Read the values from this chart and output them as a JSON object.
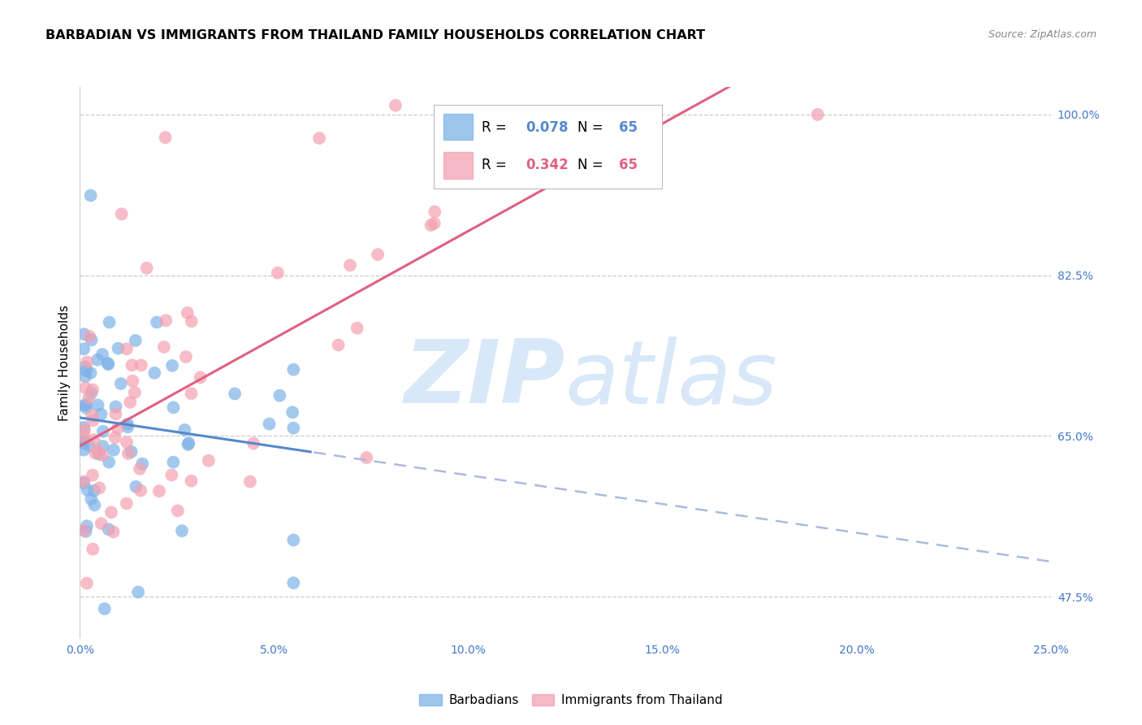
{
  "title": "BARBADIAN VS IMMIGRANTS FROM THAILAND FAMILY HOUSEHOLDS CORRELATION CHART",
  "source": "Source: ZipAtlas.com",
  "ylabel": "Family Households",
  "blue_color": "#7EB3E8",
  "pink_color": "#F4A0B0",
  "blue_line_color": "#5588CC",
  "pink_line_color": "#E06080",
  "background_color": "#FFFFFF",
  "grid_color": "#CCCCCC",
  "blue_R": 0.078,
  "pink_R": 0.342,
  "blue_N": 65,
  "pink_N": 65,
  "xlim": [
    0.0,
    0.25
  ],
  "ylim": [
    0.43,
    1.03
  ],
  "xtick_vals": [
    0.0,
    0.05,
    0.1,
    0.15,
    0.2,
    0.25
  ],
  "xtick_labels": [
    "0.0%",
    "5.0%",
    "10.0%",
    "15.0%",
    "20.0%",
    "25.0%"
  ],
  "ytick_vals": [
    0.475,
    0.65,
    0.825,
    1.0
  ],
  "ytick_labels": [
    "47.5%",
    "65.0%",
    "82.5%",
    "100.0%"
  ],
  "watermark_color": "#D8E8F8"
}
